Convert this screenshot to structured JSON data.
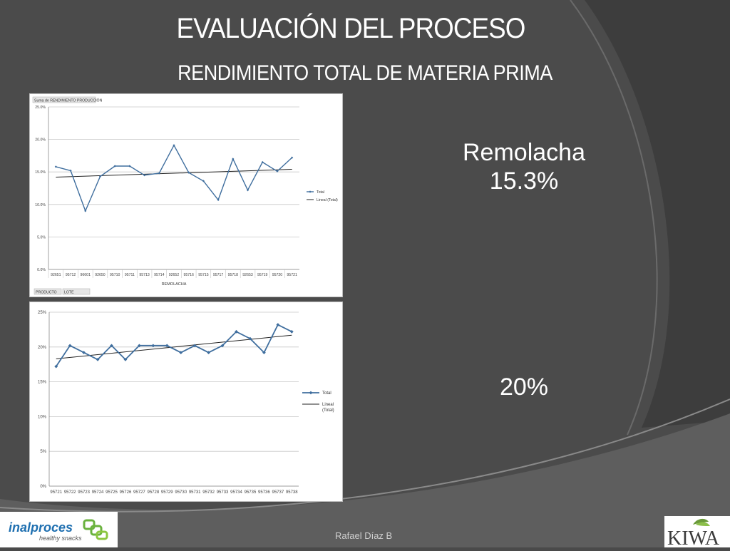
{
  "slide": {
    "title": "EVALUACIÓN DEL PROCESO",
    "subtitle": "RENDIMIENTO  TOTAL DE MATERIA PRIMA",
    "result1_name": "Remolacha",
    "result1_value": "15.3%",
    "result2_value": "20%",
    "author": "Rafael Díaz B",
    "logo_left_brand": "inalproces",
    "logo_left_tag": "healthy snacks",
    "logo_right_brand": "KIWA"
  },
  "chart_data": [
    {
      "type": "line",
      "title": "Suma de RENDIMIENTO PRODUCCIÓN",
      "xlabel": "REMOLACHA",
      "ylabel": "",
      "ylim": [
        0,
        25
      ],
      "yticks": [
        "0.0%",
        "5.0%",
        "10.0%",
        "15.0%",
        "20.0%",
        "25.0%"
      ],
      "ytick_values": [
        0,
        5,
        10,
        15,
        20,
        25
      ],
      "categories": [
        "92651",
        "95712",
        "96601",
        "92650",
        "95710",
        "95711",
        "95713",
        "95714",
        "92652",
        "95716",
        "95715",
        "95717",
        "95718",
        "92653",
        "95719",
        "95720",
        "95721"
      ],
      "series": [
        {
          "name": "Total",
          "values": [
            15.8,
            15.2,
            9.0,
            14.3,
            15.9,
            15.9,
            14.5,
            14.8,
            19.1,
            14.9,
            13.6,
            10.7,
            17.0,
            12.2,
            16.5,
            15.1,
            17.2
          ]
        }
      ],
      "trendline": {
        "name": "Lineal (Total)",
        "start": 14.2,
        "end": 15.4
      },
      "grid": true,
      "legend": "right",
      "filter_buttons": [
        "PRODUCTO",
        "LOTE"
      ]
    },
    {
      "type": "line",
      "title": "",
      "xlabel": "",
      "ylabel": "",
      "ylim": [
        0,
        25
      ],
      "yticks": [
        "0%",
        "5%",
        "10%",
        "15%",
        "20%",
        "25%"
      ],
      "ytick_values": [
        0,
        5,
        10,
        15,
        20,
        25
      ],
      "categories": [
        "95721",
        "95722",
        "95723",
        "95724",
        "95725",
        "95726",
        "95727",
        "95728",
        "95729",
        "95730",
        "95731",
        "95732",
        "95733",
        "95734",
        "95735",
        "95736",
        "95737",
        "95738"
      ],
      "series": [
        {
          "name": "Total",
          "values": [
            17.2,
            20.2,
            19.2,
            18.2,
            20.2,
            18.2,
            20.2,
            20.2,
            20.2,
            19.2,
            20.2,
            19.2,
            20.2,
            22.2,
            21.2,
            19.2,
            23.2,
            22.2
          ]
        }
      ],
      "trendline": {
        "name": "Lineal (Total)",
        "start": 18.3,
        "end": 21.7
      },
      "grid": true,
      "legend": "right"
    }
  ],
  "colors": {
    "background": "#4a4a4a",
    "series": "#3f6e9e",
    "trend": "#222222",
    "grid": "#c8c8c8"
  }
}
